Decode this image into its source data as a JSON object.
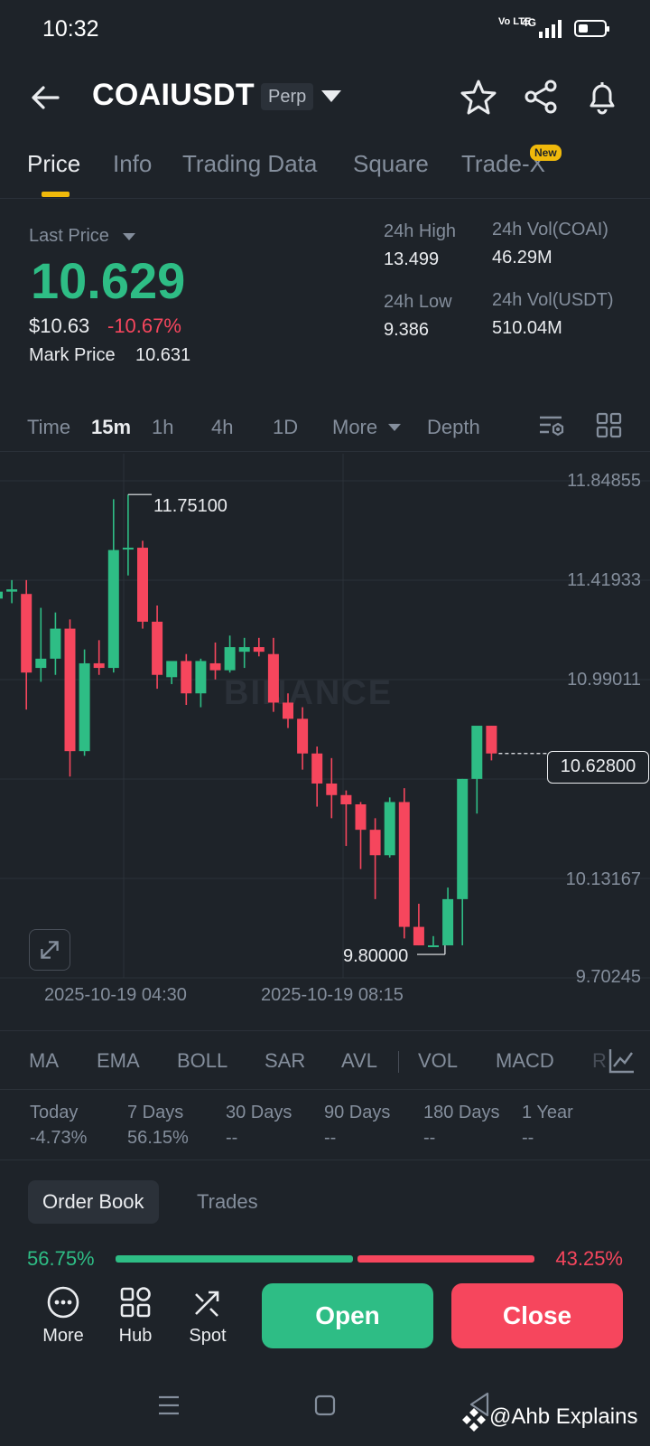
{
  "status_bar": {
    "time": "10:32",
    "network_label": "Vo LTE",
    "signal_label": "4G"
  },
  "header": {
    "pair": "COAIUSDT",
    "contract_type": "Perp"
  },
  "tabs": [
    {
      "label": "Price"
    },
    {
      "label": "Info"
    },
    {
      "label": "Trading Data"
    },
    {
      "label": "Square"
    },
    {
      "label": "Trade-X"
    }
  ],
  "new_badge": "New",
  "ticker": {
    "last_price_label": "Last Price",
    "last_price": "10.629",
    "usd_price": "$10.63",
    "change_pct": "-10.67%",
    "mark_price_label": "Mark Price",
    "mark_price": "10.631",
    "high_label": "24h High",
    "high": "13.499",
    "low_label": "24h Low",
    "low": "9.386",
    "vol_coin_label": "24h Vol(COAI)",
    "vol_coin": "46.29M",
    "vol_usdt_label": "24h Vol(USDT)",
    "vol_usdt": "510.04M"
  },
  "intervals": {
    "time_label": "Time",
    "items": [
      "15m",
      "1h",
      "4h",
      "1D"
    ],
    "more": "More",
    "depth": "Depth",
    "active": "15m"
  },
  "chart": {
    "watermark": "BINANCE",
    "y_ticks": [
      "11.84855",
      "11.41933",
      "10.99011",
      "10.13167",
      "9.70245"
    ],
    "x_ticks": [
      "2025-10-19 04:30",
      "2025-10-19 08:15"
    ],
    "current_price": "10.62800",
    "high_marker": "11.75100",
    "low_marker": "9.80000"
  },
  "chart_data": {
    "type": "candlestick",
    "interval": "15m",
    "y_range": [
      9.70245,
      11.84855
    ],
    "candles": [
      {
        "o": 11.3,
        "h": 11.46,
        "l": 11.16,
        "c": 11.33
      },
      {
        "o": 11.33,
        "h": 11.38,
        "l": 11.28,
        "c": 11.34
      },
      {
        "o": 11.32,
        "h": 11.38,
        "l": 10.82,
        "c": 10.98
      },
      {
        "o": 11.0,
        "h": 11.26,
        "l": 10.94,
        "c": 11.04
      },
      {
        "o": 11.04,
        "h": 11.24,
        "l": 10.97,
        "c": 11.17
      },
      {
        "o": 11.17,
        "h": 11.21,
        "l": 10.53,
        "c": 10.64
      },
      {
        "o": 10.64,
        "h": 11.08,
        "l": 10.62,
        "c": 11.02
      },
      {
        "o": 11.02,
        "h": 11.12,
        "l": 10.97,
        "c": 11.0
      },
      {
        "o": 11.0,
        "h": 11.73,
        "l": 10.98,
        "c": 11.51
      },
      {
        "o": 11.52,
        "h": 11.75,
        "l": 11.4,
        "c": 11.52
      },
      {
        "o": 11.52,
        "h": 11.55,
        "l": 11.17,
        "c": 11.2
      },
      {
        "o": 11.2,
        "h": 11.27,
        "l": 10.91,
        "c": 10.97
      },
      {
        "o": 10.96,
        "h": 11.02,
        "l": 10.93,
        "c": 11.03
      },
      {
        "o": 11.03,
        "h": 11.06,
        "l": 10.84,
        "c": 10.89
      },
      {
        "o": 10.89,
        "h": 11.04,
        "l": 10.83,
        "c": 11.03
      },
      {
        "o": 11.02,
        "h": 11.11,
        "l": 10.95,
        "c": 10.99
      },
      {
        "o": 10.99,
        "h": 11.14,
        "l": 10.98,
        "c": 11.09
      },
      {
        "o": 11.07,
        "h": 11.13,
        "l": 11.0,
        "c": 11.09
      },
      {
        "o": 11.09,
        "h": 11.13,
        "l": 11.05,
        "c": 11.07
      },
      {
        "o": 11.06,
        "h": 11.13,
        "l": 10.81,
        "c": 10.85
      },
      {
        "o": 10.85,
        "h": 10.89,
        "l": 10.74,
        "c": 10.78
      },
      {
        "o": 10.78,
        "h": 10.83,
        "l": 10.56,
        "c": 10.63
      },
      {
        "o": 10.63,
        "h": 10.66,
        "l": 10.4,
        "c": 10.5
      },
      {
        "o": 10.5,
        "h": 10.61,
        "l": 10.35,
        "c": 10.45
      },
      {
        "o": 10.45,
        "h": 10.47,
        "l": 10.23,
        "c": 10.41
      },
      {
        "o": 10.41,
        "h": 10.42,
        "l": 10.13,
        "c": 10.3
      },
      {
        "o": 10.3,
        "h": 10.35,
        "l": 10.0,
        "c": 10.19
      },
      {
        "o": 10.19,
        "h": 10.44,
        "l": 10.18,
        "c": 10.42
      },
      {
        "o": 10.42,
        "h": 10.48,
        "l": 9.83,
        "c": 9.88
      },
      {
        "o": 9.88,
        "h": 9.98,
        "l": 9.8,
        "c": 9.8
      },
      {
        "o": 9.8,
        "h": 9.84,
        "l": 9.8,
        "c": 9.8
      },
      {
        "o": 9.8,
        "h": 10.05,
        "l": 9.8,
        "c": 10.0
      },
      {
        "o": 10.0,
        "h": 10.52,
        "l": 9.8,
        "c": 10.52
      },
      {
        "o": 10.52,
        "h": 10.74,
        "l": 10.37,
        "c": 10.75
      },
      {
        "o": 10.75,
        "h": 10.75,
        "l": 10.6,
        "c": 10.63
      }
    ]
  },
  "indicators": [
    "MA",
    "EMA",
    "BOLL",
    "SAR",
    "AVL",
    "VOL",
    "MACD",
    "R"
  ],
  "performance": [
    {
      "label": "Today",
      "value": "-4.73%",
      "tone": "red"
    },
    {
      "label": "7 Days",
      "value": "56.15%",
      "tone": "green"
    },
    {
      "label": "30 Days",
      "value": "--",
      "tone": "muted"
    },
    {
      "label": "90 Days",
      "value": "--",
      "tone": "muted"
    },
    {
      "label": "180 Days",
      "value": "--",
      "tone": "muted"
    },
    {
      "label": "1 Year",
      "value": "--",
      "tone": "muted"
    }
  ],
  "order_book": {
    "tab_order_book": "Order Book",
    "tab_trades": "Trades",
    "bid_pct": "56.75%",
    "ask_pct": "43.25%",
    "bid_fraction": 0.5675
  },
  "actions": {
    "more": "More",
    "hub": "Hub",
    "spot": "Spot",
    "open": "Open",
    "close": "Close"
  },
  "watermark_text": "@Ahb Explains",
  "colors": {
    "up": "#2ebd85",
    "down": "#f6465d",
    "accent": "#f0b90b",
    "bg": "#1e2329"
  }
}
